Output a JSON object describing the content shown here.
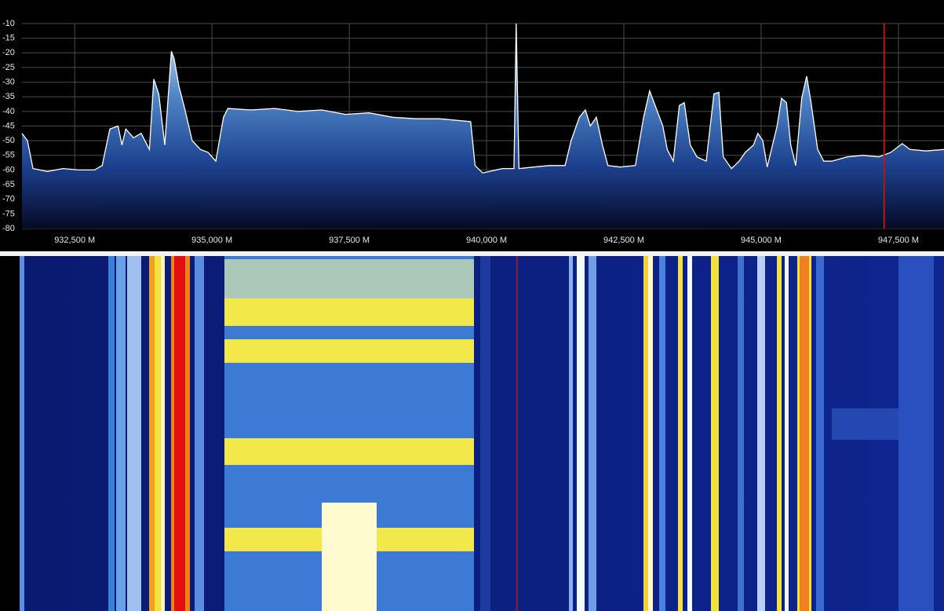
{
  "chart_data": {
    "type": "area",
    "x": [
      931540,
      931640,
      931740,
      932000,
      932290,
      932570,
      932860,
      933000,
      933140,
      933290,
      933360,
      933430,
      933570,
      933710,
      933860,
      933940,
      934030,
      934140,
      934260,
      934310,
      934400,
      934510,
      934640,
      934790,
      934930,
      935070,
      935210,
      935290,
      935710,
      936140,
      936570,
      937000,
      937430,
      937860,
      938290,
      938710,
      939140,
      939710,
      939790,
      939930,
      940290,
      940500,
      940540,
      940590,
      940860,
      941140,
      941430,
      941540,
      941690,
      941800,
      941890,
      942000,
      942110,
      942210,
      942430,
      942710,
      942860,
      942970,
      943070,
      943210,
      943290,
      943400,
      943510,
      943600,
      943660,
      943710,
      943830,
      944000,
      944140,
      944230,
      944310,
      944460,
      944600,
      944710,
      944860,
      944940,
      945030,
      945110,
      945290,
      945370,
      945460,
      945540,
      945630,
      945740,
      945830,
      945910,
      946030,
      946140,
      946290,
      946570,
      946860,
      947140,
      947360,
      947570,
      947710,
      948000,
      948330
    ],
    "values": [
      -47.5,
      -50,
      -59.5,
      -60.5,
      -59.5,
      -60,
      -60,
      -58.5,
      -46,
      -45,
      -51.5,
      -46,
      -49,
      -47.5,
      -53,
      -29,
      -34,
      -51.5,
      -19.5,
      -22,
      -31.5,
      -39.5,
      -50,
      -53,
      -54,
      -57,
      -42,
      -39,
      -39.5,
      -39,
      -40,
      -39.5,
      -41,
      -40.5,
      -42,
      -42.5,
      -42.5,
      -43.5,
      -58.5,
      -61,
      -59.5,
      -59.5,
      -10,
      -59.5,
      -59,
      -58.5,
      -58.5,
      -50,
      -42,
      -39.5,
      -45,
      -42,
      -51.5,
      -58.5,
      -59,
      -58.5,
      -42,
      -33,
      -38,
      -45,
      -53,
      -57,
      -38,
      -37,
      -45,
      -51.5,
      -55.5,
      -57,
      -34,
      -33.5,
      -55.5,
      -59.5,
      -57,
      -54,
      -51.5,
      -47.5,
      -50,
      -59,
      -45,
      -35.5,
      -37,
      -51.5,
      -58.5,
      -35.5,
      -28,
      -37,
      -53,
      -57,
      -57,
      -55.5,
      -55,
      -55.5,
      -54,
      -51,
      -53,
      -53.5,
      -53
    ],
    "color": "#ffffff",
    "xlim": [
      931540,
      948330
    ],
    "xticks": [
      {
        "value": 932500,
        "label": "932,500 M"
      },
      {
        "value": 935000,
        "label": "935,000 M"
      },
      {
        "value": 937500,
        "label": "937,500 M"
      },
      {
        "value": 940000,
        "label": "940,000 M"
      },
      {
        "value": 942500,
        "label": "942,500 M"
      },
      {
        "value": 945000,
        "label": "945,000 M"
      },
      {
        "value": 947500,
        "label": "947,500 M"
      }
    ],
    "ylim": [
      -80,
      -10
    ],
    "yticks": [
      -10,
      -15,
      -20,
      -25,
      -30,
      -35,
      -40,
      -45,
      -50,
      -55,
      -60,
      -65,
      -70,
      -75,
      -80
    ],
    "grid": true,
    "marker": 947240,
    "marker_color": "#b01a1a"
  }
}
